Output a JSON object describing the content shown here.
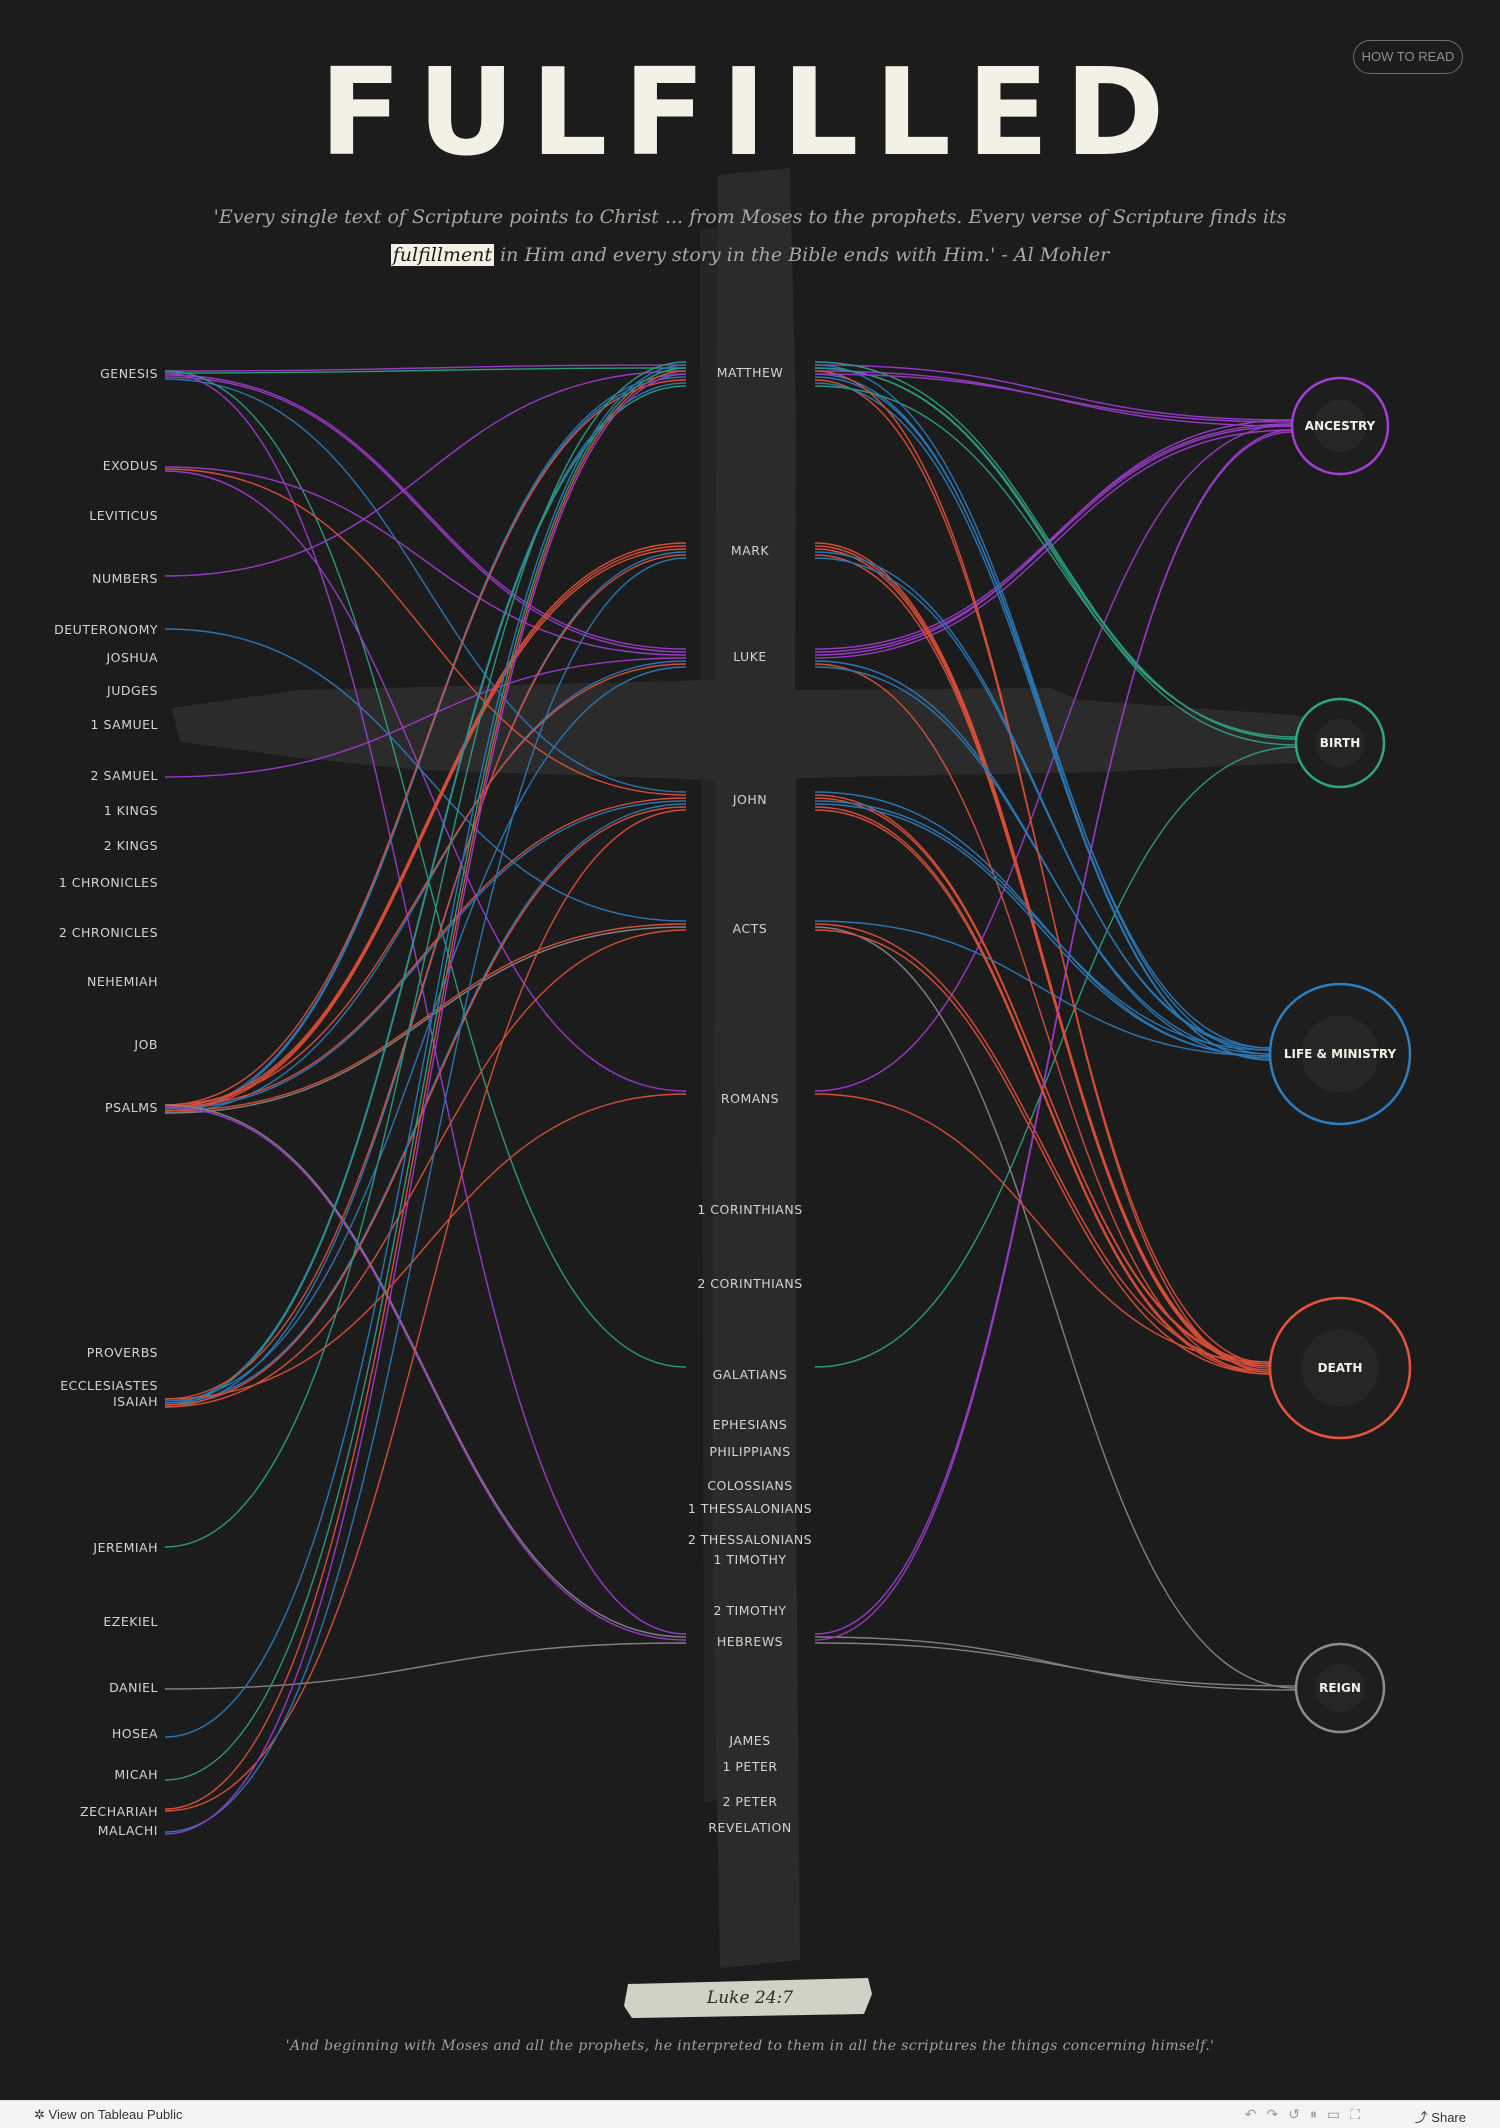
{
  "header": {
    "title": "FULFILLED",
    "how_to_read": "HOW TO READ",
    "quote_line1": "'Every single text of  Scripture points to Christ ... from Moses to the prophets. Every verse of  Scripture finds its",
    "quote_highlight": "fulfillment",
    "quote_line2_rest": " in Him and every story in the Bible ends with Him.'  - Al Mohler"
  },
  "ot_books": [
    "GENESIS",
    "EXODUS",
    "LEVITICUS",
    "NUMBERS",
    "DEUTERONOMY",
    "JOSHUA",
    "JUDGES",
    "1 SAMUEL",
    "2 SAMUEL",
    "1 KINGS",
    "2 KINGS",
    "1 CHRONICLES",
    "2 CHRONICLES",
    "NEHEMIAH",
    "JOB",
    "PSALMS",
    "PROVERBS",
    "ECCLESIASTES",
    "ISAIAH",
    "JEREMIAH",
    "EZEKIEL",
    "DANIEL",
    "HOSEA",
    "MICAH",
    "ZECHARIAH",
    "MALACHI"
  ],
  "nt_books": [
    "MATTHEW",
    "MARK",
    "LUKE",
    "JOHN",
    "ACTS",
    "ROMANS",
    "1 CORINTHIANS",
    "2 CORINTHIANS",
    "GALATIANS",
    "EPHESIANS",
    "PHILIPPIANS",
    "COLOSSIANS",
    "1 THESSALONIANS",
    "2 THESSALONIANS",
    "1 TIMOTHY",
    "2 TIMOTHY",
    "HEBREWS",
    "JAMES",
    "1 PETER",
    "2 PETER",
    "REVELATION"
  ],
  "categories": [
    {
      "label": "ANCESTRY",
      "color": "#a43ed6",
      "icon": "family-tree-icon"
    },
    {
      "label": "BIRTH",
      "color": "#2ea585",
      "icon": "manger-icon"
    },
    {
      "label": "LIFE & MINISTRY",
      "color": "#2d7fc0",
      "icon": "dove-icon"
    },
    {
      "label": "DEATH",
      "color": "#e8533b",
      "icon": "crosses-icon"
    },
    {
      "label": "REIGN",
      "color": "#8c8c8c",
      "icon": "crown-icon"
    }
  ],
  "links": [
    {
      "from": "GENESIS",
      "nt": "MATTHEW",
      "cat": "ANCESTRY"
    },
    {
      "from": "GENESIS",
      "nt": "MATTHEW",
      "cat": "BIRTH"
    },
    {
      "from": "GENESIS",
      "nt": "LUKE",
      "cat": "ANCESTRY"
    },
    {
      "from": "GENESIS",
      "nt": "LUKE",
      "cat": "ANCESTRY"
    },
    {
      "from": "GENESIS",
      "nt": "JOHN",
      "cat": "LIFE & MINISTRY"
    },
    {
      "from": "GENESIS",
      "nt": "GALATIANS",
      "cat": "BIRTH"
    },
    {
      "from": "GENESIS",
      "nt": "HEBREWS",
      "cat": "ANCESTRY"
    },
    {
      "from": "EXODUS",
      "nt": "LUKE",
      "cat": "ANCESTRY"
    },
    {
      "from": "EXODUS",
      "nt": "JOHN",
      "cat": "DEATH"
    },
    {
      "from": "EXODUS",
      "nt": "ROMANS",
      "cat": "ANCESTRY"
    },
    {
      "from": "NUMBERS",
      "nt": "MATTHEW",
      "cat": "ANCESTRY"
    },
    {
      "from": "DEUTERONOMY",
      "nt": "ACTS",
      "cat": "LIFE & MINISTRY"
    },
    {
      "from": "2 SAMUEL",
      "nt": "LUKE",
      "cat": "ANCESTRY"
    },
    {
      "from": "PSALMS",
      "nt": "MATTHEW",
      "cat": "LIFE & MINISTRY"
    },
    {
      "from": "PSALMS",
      "nt": "MATTHEW",
      "cat": "LIFE & MINISTRY"
    },
    {
      "from": "PSALMS",
      "nt": "MATTHEW",
      "cat": "DEATH"
    },
    {
      "from": "PSALMS",
      "nt": "MARK",
      "cat": "DEATH"
    },
    {
      "from": "PSALMS",
      "nt": "MARK",
      "cat": "DEATH"
    },
    {
      "from": "PSALMS",
      "nt": "MARK",
      "cat": "DEATH"
    },
    {
      "from": "PSALMS",
      "nt": "LUKE",
      "cat": "LIFE & MINISTRY"
    },
    {
      "from": "PSALMS",
      "nt": "LUKE",
      "cat": "DEATH"
    },
    {
      "from": "PSALMS",
      "nt": "JOHN",
      "cat": "DEATH"
    },
    {
      "from": "PSALMS",
      "nt": "JOHN",
      "cat": "LIFE & MINISTRY"
    },
    {
      "from": "PSALMS",
      "nt": "ACTS",
      "cat": "DEATH"
    },
    {
      "from": "PSALMS",
      "nt": "ACTS",
      "cat": "REIGN"
    },
    {
      "from": "PSALMS",
      "nt": "HEBREWS",
      "cat": "REIGN"
    },
    {
      "from": "PSALMS",
      "nt": "HEBREWS",
      "cat": "ANCESTRY"
    },
    {
      "from": "ISAIAH",
      "nt": "MATTHEW",
      "cat": "LIFE & MINISTRY"
    },
    {
      "from": "ISAIAH",
      "nt": "MATTHEW",
      "cat": "BIRTH"
    },
    {
      "from": "ISAIAH",
      "nt": "MARK",
      "cat": "LIFE & MINISTRY"
    },
    {
      "from": "ISAIAH",
      "nt": "MARK",
      "cat": "DEATH"
    },
    {
      "from": "ISAIAH",
      "nt": "LUKE",
      "cat": "LIFE & MINISTRY"
    },
    {
      "from": "ISAIAH",
      "nt": "JOHN",
      "cat": "LIFE & MINISTRY"
    },
    {
      "from": "ISAIAH",
      "nt": "JOHN",
      "cat": "DEATH"
    },
    {
      "from": "ISAIAH",
      "nt": "ACTS",
      "cat": "DEATH"
    },
    {
      "from": "ISAIAH",
      "nt": "ROMANS",
      "cat": "DEATH"
    },
    {
      "from": "JEREMIAH",
      "nt": "MATTHEW",
      "cat": "BIRTH"
    },
    {
      "from": "DANIEL",
      "nt": "HEBREWS",
      "cat": "REIGN"
    },
    {
      "from": "HOSEA",
      "nt": "MATTHEW",
      "cat": "LIFE & MINISTRY"
    },
    {
      "from": "MICAH",
      "nt": "MATTHEW",
      "cat": "BIRTH"
    },
    {
      "from": "ZECHARIAH",
      "nt": "MATTHEW",
      "cat": "DEATH"
    },
    {
      "from": "ZECHARIAH",
      "nt": "JOHN",
      "cat": "DEATH"
    },
    {
      "from": "MALACHI",
      "nt": "MARK",
      "cat": "LIFE & MINISTRY"
    },
    {
      "from": "MALACHI",
      "nt": "MATTHEW",
      "cat": "ANCESTRY"
    }
  ],
  "footer_reference": {
    "ref": "Luke 24:7",
    "quote": "'And beginning with Moses and all the prophets, he interpreted to them in all the scriptures the things concerning himself.'"
  },
  "tableau_bar": {
    "view_label": "View on Tableau Public",
    "share_label": "Share"
  }
}
